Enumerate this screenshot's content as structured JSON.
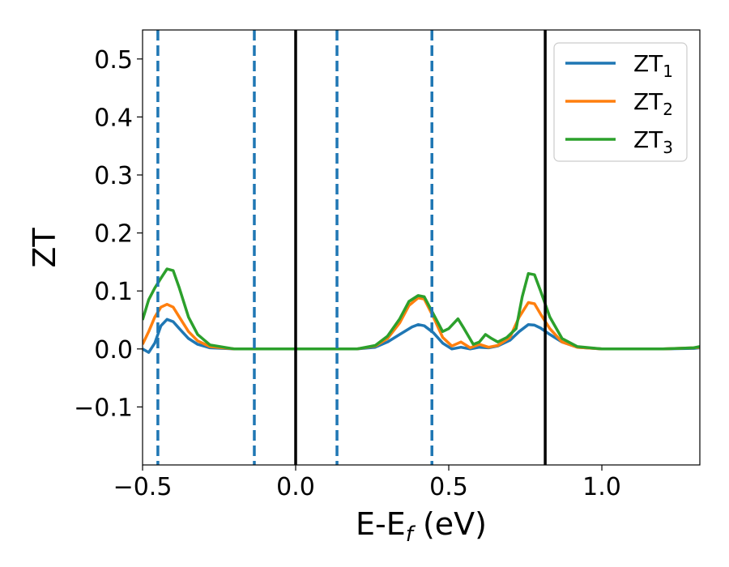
{
  "chart_data": {
    "type": "line",
    "xlabel_main": "E-E",
    "xlabel_sub": "f",
    "xlabel_unit": " (eV)",
    "ylabel": "ZT",
    "xlim": [
      -0.5,
      1.32
    ],
    "ylim": [
      -0.2,
      0.55
    ],
    "x_ticks": [
      {
        "value": -0.5,
        "label": "−0.5"
      },
      {
        "value": 0.0,
        "label": "0.0"
      },
      {
        "value": 0.5,
        "label": "0.5"
      },
      {
        "value": 1.0,
        "label": "1.0"
      }
    ],
    "y_ticks": [
      {
        "value": -0.1,
        "label": "−0.1"
      },
      {
        "value": 0.0,
        "label": "0.0"
      },
      {
        "value": 0.1,
        "label": "0.1"
      },
      {
        "value": 0.2,
        "label": "0.2"
      },
      {
        "value": 0.3,
        "label": "0.3"
      },
      {
        "value": 0.4,
        "label": "0.4"
      },
      {
        "value": 0.5,
        "label": "0.5"
      }
    ],
    "grid": false,
    "legend_position": "top-right",
    "vlines_dashed": {
      "color": "#1f77b4",
      "x": [
        -0.45,
        -0.135,
        0.135,
        0.445
      ]
    },
    "vlines_solid": {
      "color": "#000000",
      "x": [
        0.0,
        0.815
      ]
    },
    "series": [
      {
        "name": "ZT",
        "sub": "1",
        "color": "#1f77b4",
        "points": [
          [
            -0.5,
            0.0
          ],
          [
            -0.48,
            -0.006
          ],
          [
            -0.46,
            0.01
          ],
          [
            -0.44,
            0.04
          ],
          [
            -0.42,
            0.051
          ],
          [
            -0.4,
            0.047
          ],
          [
            -0.38,
            0.035
          ],
          [
            -0.35,
            0.018
          ],
          [
            -0.32,
            0.008
          ],
          [
            -0.28,
            0.002
          ],
          [
            -0.2,
            0.0
          ],
          [
            0.2,
            0.0
          ],
          [
            0.26,
            0.003
          ],
          [
            0.3,
            0.012
          ],
          [
            0.34,
            0.025
          ],
          [
            0.38,
            0.038
          ],
          [
            0.4,
            0.042
          ],
          [
            0.42,
            0.04
          ],
          [
            0.45,
            0.028
          ],
          [
            0.48,
            0.01
          ],
          [
            0.51,
            0.0
          ],
          [
            0.54,
            0.003
          ],
          [
            0.57,
            0.0
          ],
          [
            0.6,
            0.003
          ],
          [
            0.63,
            0.002
          ],
          [
            0.66,
            0.005
          ],
          [
            0.7,
            0.015
          ],
          [
            0.73,
            0.03
          ],
          [
            0.76,
            0.042
          ],
          [
            0.78,
            0.041
          ],
          [
            0.8,
            0.036
          ],
          [
            0.83,
            0.025
          ],
          [
            0.87,
            0.012
          ],
          [
            0.92,
            0.003
          ],
          [
            1.0,
            0.0
          ],
          [
            1.2,
            0.0
          ],
          [
            1.3,
            0.001
          ],
          [
            1.32,
            0.002
          ]
        ]
      },
      {
        "name": "ZT",
        "sub": "2",
        "color": "#ff7f0e",
        "points": [
          [
            -0.5,
            0.008
          ],
          [
            -0.48,
            0.03
          ],
          [
            -0.46,
            0.055
          ],
          [
            -0.44,
            0.072
          ],
          [
            -0.42,
            0.077
          ],
          [
            -0.4,
            0.072
          ],
          [
            -0.38,
            0.055
          ],
          [
            -0.35,
            0.03
          ],
          [
            -0.32,
            0.014
          ],
          [
            -0.28,
            0.004
          ],
          [
            -0.2,
            0.0
          ],
          [
            0.2,
            0.0
          ],
          [
            0.26,
            0.005
          ],
          [
            0.3,
            0.018
          ],
          [
            0.34,
            0.045
          ],
          [
            0.37,
            0.075
          ],
          [
            0.4,
            0.088
          ],
          [
            0.42,
            0.086
          ],
          [
            0.45,
            0.055
          ],
          [
            0.48,
            0.02
          ],
          [
            0.51,
            0.005
          ],
          [
            0.54,
            0.012
          ],
          [
            0.57,
            0.002
          ],
          [
            0.6,
            0.008
          ],
          [
            0.63,
            0.003
          ],
          [
            0.66,
            0.006
          ],
          [
            0.7,
            0.02
          ],
          [
            0.73,
            0.055
          ],
          [
            0.76,
            0.08
          ],
          [
            0.78,
            0.078
          ],
          [
            0.8,
            0.06
          ],
          [
            0.83,
            0.035
          ],
          [
            0.87,
            0.012
          ],
          [
            0.92,
            0.003
          ],
          [
            1.0,
            0.0
          ],
          [
            1.2,
            0.0
          ],
          [
            1.3,
            0.002
          ],
          [
            1.32,
            0.003
          ]
        ]
      },
      {
        "name": "ZT",
        "sub": "3",
        "color": "#2ca02c",
        "points": [
          [
            -0.5,
            0.05
          ],
          [
            -0.48,
            0.085
          ],
          [
            -0.46,
            0.105
          ],
          [
            -0.44,
            0.122
          ],
          [
            -0.42,
            0.138
          ],
          [
            -0.4,
            0.135
          ],
          [
            -0.38,
            0.105
          ],
          [
            -0.35,
            0.055
          ],
          [
            -0.32,
            0.025
          ],
          [
            -0.28,
            0.007
          ],
          [
            -0.2,
            0.0
          ],
          [
            0.2,
            0.0
          ],
          [
            0.26,
            0.006
          ],
          [
            0.3,
            0.022
          ],
          [
            0.34,
            0.052
          ],
          [
            0.37,
            0.082
          ],
          [
            0.4,
            0.092
          ],
          [
            0.42,
            0.09
          ],
          [
            0.45,
            0.06
          ],
          [
            0.48,
            0.03
          ],
          [
            0.5,
            0.035
          ],
          [
            0.53,
            0.052
          ],
          [
            0.55,
            0.035
          ],
          [
            0.58,
            0.008
          ],
          [
            0.6,
            0.012
          ],
          [
            0.62,
            0.025
          ],
          [
            0.64,
            0.018
          ],
          [
            0.66,
            0.012
          ],
          [
            0.69,
            0.02
          ],
          [
            0.72,
            0.035
          ],
          [
            0.74,
            0.09
          ],
          [
            0.76,
            0.13
          ],
          [
            0.78,
            0.128
          ],
          [
            0.8,
            0.1
          ],
          [
            0.83,
            0.055
          ],
          [
            0.87,
            0.018
          ],
          [
            0.92,
            0.004
          ],
          [
            1.0,
            0.0
          ],
          [
            1.2,
            0.0
          ],
          [
            1.3,
            0.002
          ],
          [
            1.32,
            0.004
          ]
        ]
      }
    ]
  }
}
